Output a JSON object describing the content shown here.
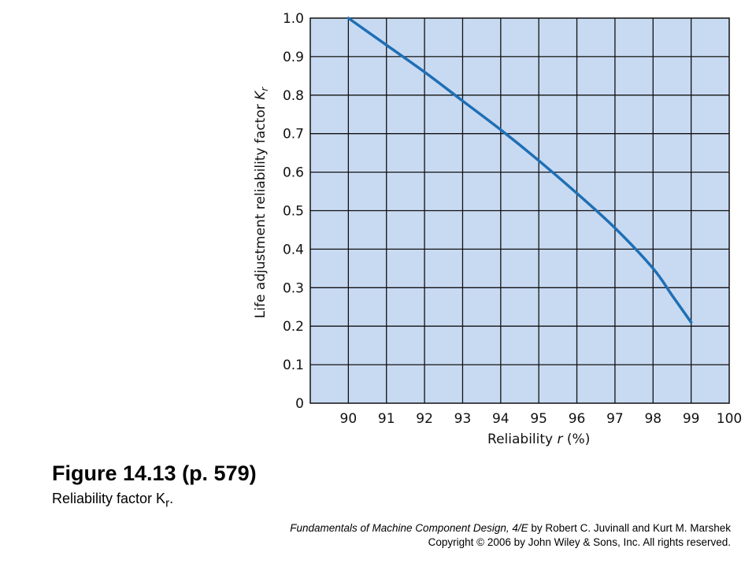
{
  "chart_data": {
    "type": "line",
    "xlabel": "Reliability r (%)",
    "ylabel": "Life adjustment reliability factor Kr",
    "xlim": [
      89,
      100
    ],
    "ylim": [
      0,
      1.0
    ],
    "x_ticks": [
      "90",
      "91",
      "92",
      "93",
      "94",
      "95",
      "96",
      "97",
      "98",
      "99",
      "100"
    ],
    "y_ticks": [
      "0",
      "0.1",
      "0.2",
      "0.3",
      "0.4",
      "0.5",
      "0.6",
      "0.7",
      "0.8",
      "0.9",
      "1.0"
    ],
    "grid": true,
    "series": [
      {
        "x": [
          90,
          91,
          92,
          93,
          94,
          95,
          96,
          97,
          98,
          98.5,
          99
        ],
        "y": [
          1.0,
          0.93,
          0.86,
          0.785,
          0.71,
          0.63,
          0.545,
          0.455,
          0.35,
          0.28,
          0.21
        ],
        "color": "#1f6fb5"
      }
    ],
    "plot_background": "#c8daf2"
  },
  "caption": {
    "title": "Figure 14.13  (p. 579)",
    "subtitle_text": "Reliability  factor K",
    "subtitle_subscript": "r",
    "subtitle_end": "."
  },
  "credit": {
    "book": "Fundamentals of Machine Component Design, 4/E",
    "authors": " by Robert C.  Juvinall and Kurt M. Marshek",
    "copyright": "Copyright © 2006 by John Wiley & Sons, Inc.  All rights reserved."
  }
}
